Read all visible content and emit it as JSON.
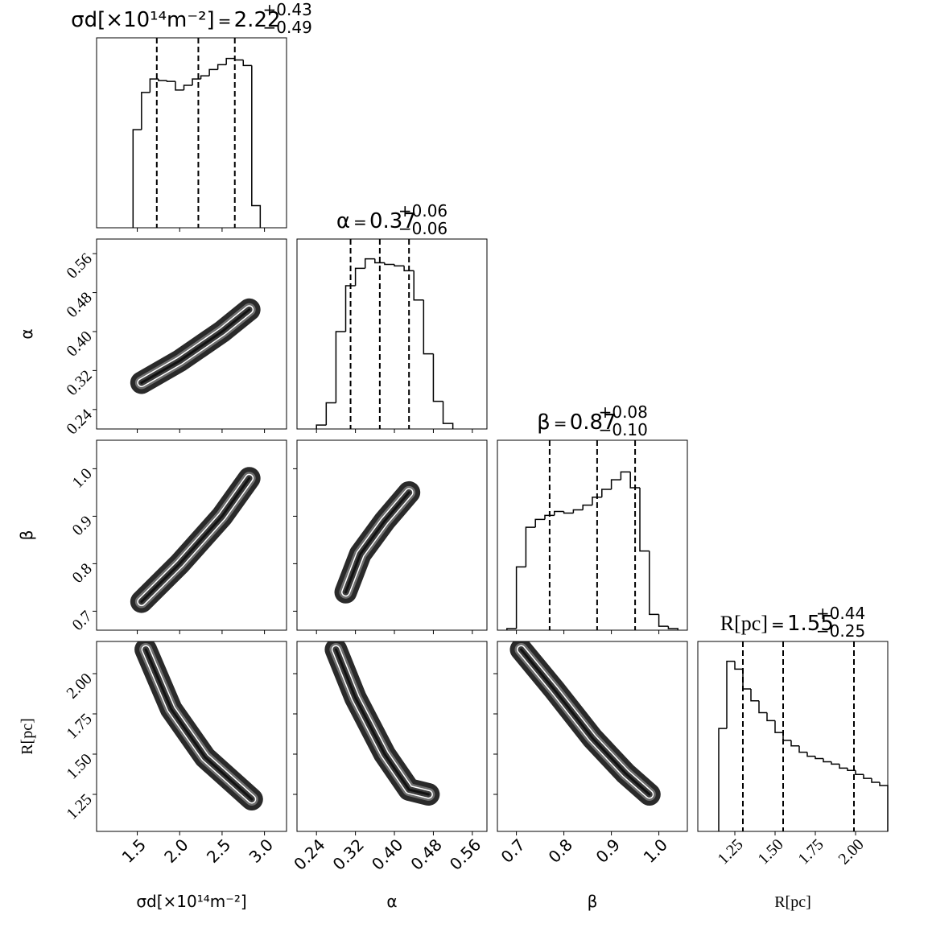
{
  "chart_data": {
    "type": "corner",
    "params": [
      {
        "label": "σd[×10¹⁴m⁻²]",
        "lim": [
          1.02,
          3.26
        ],
        "ticks": [
          1.5,
          {
            "value": 2,
            "label": "2.0"
          },
          2.5,
          {
            "value": 3,
            "label": "3.0"
          }
        ],
        "bins": [
          1.45,
          1.55,
          1.65,
          1.75,
          1.85,
          1.95,
          2.05,
          2.15,
          2.25,
          2.35,
          2.45,
          2.55,
          2.65,
          2.75,
          2.85,
          2.95
        ],
        "counts": [
          124,
          171,
          188,
          186,
          185,
          174,
          180,
          188,
          192,
          200,
          206,
          214,
          212,
          205,
          28
        ],
        "quantiles": [
          1.73,
          2.22,
          2.65
        ],
        "err_up": "+0.43",
        "err_down": "−0.49"
      },
      {
        "label": "α",
        "lim": [
          0.2,
          0.59
        ],
        "ticks": [
          0.24,
          0.32,
          {
            "value": 0.4,
            "label": "0.40"
          },
          0.48,
          0.56
        ],
        "bins": [
          0.24,
          0.26,
          0.28,
          0.3,
          0.32,
          0.34,
          0.36,
          0.38,
          0.4,
          0.42,
          0.44,
          0.46,
          0.48,
          0.5,
          0.52
        ],
        "counts": [
          5,
          33,
          123,
          181,
          203,
          215,
          210,
          208,
          206,
          200,
          163,
          95,
          35,
          7
        ],
        "quantiles": [
          0.31,
          0.37,
          0.43
        ],
        "err_up": "+0.06",
        "err_down": "−0.06"
      },
      {
        "label": "β",
        "lim": [
          0.66,
          1.06
        ],
        "ticks": [
          0.7,
          0.8,
          0.9,
          {
            "value": 1,
            "label": "1.0"
          }
        ],
        "bins": [
          0.68,
          0.7,
          0.72,
          0.74,
          0.76,
          0.78,
          0.8,
          0.82,
          0.84,
          0.86,
          0.88,
          0.9,
          0.92,
          0.94,
          0.96,
          0.98,
          1.0,
          1.02,
          1.04
        ],
        "counts": [
          2,
          80,
          130,
          140,
          145,
          150,
          148,
          152,
          158,
          168,
          178,
          190,
          200,
          180,
          100,
          20,
          5,
          2
        ],
        "quantiles": [
          0.77,
          0.87,
          0.95
        ],
        "err_up": "+0.08",
        "err_down": "−0.10"
      },
      {
        "label": "R[pc]",
        "lim": [
          1.02,
          2.2
        ],
        "ticks": [
          1.25,
          {
            "value": 1.5,
            "label": "1.50"
          },
          1.75,
          {
            "value": 2,
            "label": "2.00"
          }
        ],
        "bins": [
          1.15,
          1.2,
          1.25,
          1.3,
          1.35,
          1.4,
          1.45,
          1.5,
          1.55,
          1.6,
          1.65,
          1.7,
          1.75,
          1.8,
          1.85,
          1.9,
          1.95,
          2.0,
          2.05,
          2.1,
          2.15,
          2.2
        ],
        "counts": [
          130,
          215,
          205,
          180,
          165,
          150,
          140,
          125,
          115,
          108,
          100,
          95,
          92,
          88,
          85,
          80,
          77,
          72,
          67,
          62,
          58
        ],
        "quantiles": [
          1.3,
          1.55,
          1.99
        ],
        "err_up": "+0.44",
        "err_down": "−0.25"
      }
    ],
    "hist_ylim": [
      0,
      240
    ],
    "pairs": [
      {
        "x": 0,
        "y": 1,
        "ridge_x": [
          1.55,
          2.0,
          2.5,
          2.82
        ],
        "ridge_y": [
          0.295,
          0.34,
          0.4,
          0.445
        ]
      },
      {
        "x": 0,
        "y": 2,
        "ridge_x": [
          1.55,
          2.0,
          2.5,
          2.82
        ],
        "ridge_y": [
          0.72,
          0.8,
          0.9,
          0.98
        ]
      },
      {
        "x": 1,
        "y": 2,
        "ridge_x": [
          0.3,
          0.33,
          0.38,
          0.43
        ],
        "ridge_y": [
          0.74,
          0.82,
          0.89,
          0.95
        ]
      },
      {
        "x": 0,
        "y": 3,
        "ridge_x": [
          1.6,
          1.9,
          2.3,
          2.85
        ],
        "ridge_y": [
          2.15,
          1.78,
          1.48,
          1.22
        ]
      },
      {
        "x": 1,
        "y": 3,
        "ridge_x": [
          0.28,
          0.32,
          0.38,
          0.43,
          0.47
        ],
        "ridge_y": [
          2.15,
          1.85,
          1.5,
          1.28,
          1.25
        ]
      },
      {
        "x": 2,
        "y": 3,
        "ridge_x": [
          0.71,
          0.78,
          0.86,
          0.93,
          0.98
        ],
        "ridge_y": [
          2.15,
          1.9,
          1.6,
          1.38,
          1.25
        ]
      }
    ]
  }
}
